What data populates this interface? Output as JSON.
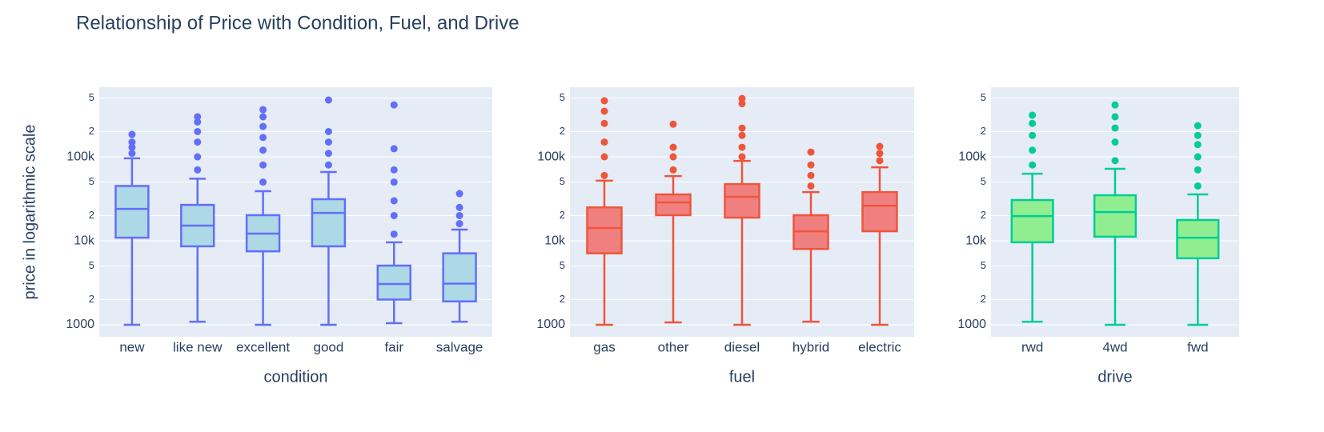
{
  "chart_data": [
    {
      "type": "box",
      "title": "Relationship of Price with Condition, Fuel, and Drive",
      "ylabel": "price in logarithmic scale",
      "xlabel": "condition",
      "categories": [
        "new",
        "like new",
        "excellent",
        "good",
        "fair",
        "salvage"
      ],
      "color": "#636efa",
      "fillcolor": "#add8e6",
      "log_scale": true,
      "grid": true,
      "ylim": [
        720,
        675000
      ],
      "yticks": [
        1000,
        {
          "value": 2000,
          "label": "2"
        },
        {
          "value": 5000,
          "label": "5"
        },
        {
          "value": 10000,
          "label": "10k"
        },
        {
          "value": 20000,
          "label": "2"
        },
        {
          "value": 50000,
          "label": "5"
        },
        {
          "value": 100000,
          "label": "100k"
        },
        {
          "value": 200000,
          "label": "2"
        },
        {
          "value": 500000,
          "label": "5"
        }
      ],
      "boxes": [
        {
          "lower": 1000,
          "q1": 10900,
          "median": 24000,
          "q3": 45000,
          "upper": 96000,
          "outliers": [
            110000,
            130000,
            150000,
            185000
          ]
        },
        {
          "lower": 1090,
          "q1": 8600,
          "median": 15200,
          "q3": 26800,
          "upper": 55000,
          "outliers": [
            70000,
            100000,
            150000,
            200000,
            260000,
            300000
          ]
        },
        {
          "lower": 1000,
          "q1": 7500,
          "median": 12200,
          "q3": 20200,
          "upper": 39000,
          "outliers": [
            50000,
            80000,
            120000,
            170000,
            230000,
            300000,
            365000
          ]
        },
        {
          "lower": 1000,
          "q1": 8600,
          "median": 21500,
          "q3": 31300,
          "upper": 66000,
          "outliers": [
            80000,
            110000,
            150000,
            200000,
            475000
          ]
        },
        {
          "lower": 1045,
          "q1": 2000,
          "median": 3060,
          "q3": 5070,
          "upper": 9600,
          "outliers": [
            12000,
            20000,
            30000,
            50000,
            70000,
            125000,
            415000
          ]
        },
        {
          "lower": 1090,
          "q1": 1900,
          "median": 3100,
          "q3": 7100,
          "upper": 13600,
          "outliers": [
            16000,
            20000,
            25000,
            36500
          ]
        }
      ]
    },
    {
      "type": "box",
      "xlabel": "fuel",
      "categories": [
        "gas",
        "other",
        "diesel",
        "hybrid",
        "electric"
      ],
      "color": "#ef553b",
      "fillcolor": "#f08080",
      "log_scale": true,
      "grid": true,
      "ylim": [
        720,
        675000
      ],
      "yticks": [
        1000,
        {
          "value": 2000,
          "label": "2"
        },
        {
          "value": 5000,
          "label": "5"
        },
        {
          "value": 10000,
          "label": "10k"
        },
        {
          "value": 20000,
          "label": "2"
        },
        {
          "value": 50000,
          "label": "5"
        },
        {
          "value": 100000,
          "label": "100k"
        },
        {
          "value": 200000,
          "label": "2"
        },
        {
          "value": 500000,
          "label": "5"
        }
      ],
      "boxes": [
        {
          "lower": 1000,
          "q1": 7100,
          "median": 14200,
          "q3": 25000,
          "upper": 52000,
          "outliers": [
            60000,
            100000,
            150000,
            250000,
            350000,
            465000
          ]
        },
        {
          "lower": 1070,
          "q1": 20200,
          "median": 28700,
          "q3": 35700,
          "upper": 59000,
          "outliers": [
            70000,
            100000,
            130000,
            245000
          ]
        },
        {
          "lower": 1000,
          "q1": 18900,
          "median": 33400,
          "q3": 47400,
          "upper": 89500,
          "outliers": [
            100000,
            130000,
            180000,
            220000,
            430000,
            495000
          ]
        },
        {
          "lower": 1090,
          "q1": 8000,
          "median": 13000,
          "q3": 20200,
          "upper": 38000,
          "outliers": [
            45000,
            60000,
            80000,
            114000
          ]
        },
        {
          "lower": 1000,
          "q1": 13000,
          "median": 26200,
          "q3": 38000,
          "upper": 75000,
          "outliers": [
            90000,
            110000,
            133000
          ]
        }
      ]
    },
    {
      "type": "box",
      "xlabel": "drive",
      "categories": [
        "rwd",
        "4wd",
        "fwd"
      ],
      "color": "#00cc96",
      "fillcolor": "#90ee90",
      "log_scale": true,
      "grid": true,
      "ylim": [
        720,
        675000
      ],
      "yticks": [
        1000,
        {
          "value": 2000,
          "label": "2"
        },
        {
          "value": 5000,
          "label": "5"
        },
        {
          "value": 10000,
          "label": "10k"
        },
        {
          "value": 20000,
          "label": "2"
        },
        {
          "value": 50000,
          "label": "5"
        },
        {
          "value": 100000,
          "label": "100k"
        },
        {
          "value": 200000,
          "label": "2"
        },
        {
          "value": 500000,
          "label": "5"
        }
      ],
      "boxes": [
        {
          "lower": 1090,
          "q1": 9600,
          "median": 19700,
          "q3": 30600,
          "upper": 63000,
          "outliers": [
            80000,
            120000,
            180000,
            250000,
            313000
          ]
        },
        {
          "lower": 1000,
          "q1": 11200,
          "median": 22000,
          "q3": 34900,
          "upper": 72000,
          "outliers": [
            90000,
            150000,
            220000,
            300000,
            415000
          ]
        },
        {
          "lower": 1000,
          "q1": 6200,
          "median": 10900,
          "q3": 17700,
          "upper": 35700,
          "outliers": [
            45000,
            70000,
            100000,
            140000,
            180000,
            235000
          ]
        }
      ]
    }
  ]
}
